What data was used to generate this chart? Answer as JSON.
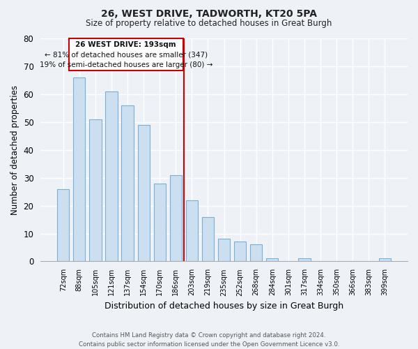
{
  "title": "26, WEST DRIVE, TADWORTH, KT20 5PA",
  "subtitle": "Size of property relative to detached houses in Great Burgh",
  "xlabel": "Distribution of detached houses by size in Great Burgh",
  "ylabel": "Number of detached properties",
  "bar_labels": [
    "72sqm",
    "88sqm",
    "105sqm",
    "121sqm",
    "137sqm",
    "154sqm",
    "170sqm",
    "186sqm",
    "203sqm",
    "219sqm",
    "235sqm",
    "252sqm",
    "268sqm",
    "284sqm",
    "301sqm",
    "317sqm",
    "334sqm",
    "350sqm",
    "366sqm",
    "383sqm",
    "399sqm"
  ],
  "bar_values": [
    26,
    66,
    51,
    61,
    56,
    49,
    28,
    31,
    22,
    16,
    8,
    7,
    6,
    1,
    0,
    1,
    0,
    0,
    0,
    0,
    1
  ],
  "bar_color": "#ccdff0",
  "bar_edge_color": "#7aafd4",
  "ylim": [
    0,
    80
  ],
  "yticks": [
    0,
    10,
    20,
    30,
    40,
    50,
    60,
    70,
    80
  ],
  "marker_line_color": "#cc0000",
  "annotation_text_line1": "26 WEST DRIVE: 193sqm",
  "annotation_text_line2": "← 81% of detached houses are smaller (347)",
  "annotation_text_line3": "19% of semi-detached houses are larger (80) →",
  "annotation_box_color": "#cc0000",
  "footer_line1": "Contains HM Land Registry data © Crown copyright and database right 2024.",
  "footer_line2": "Contains public sector information licensed under the Open Government Licence v3.0.",
  "background_color": "#eef2f7",
  "plot_background_color": "#eef2f7",
  "grid_color": "#ffffff"
}
